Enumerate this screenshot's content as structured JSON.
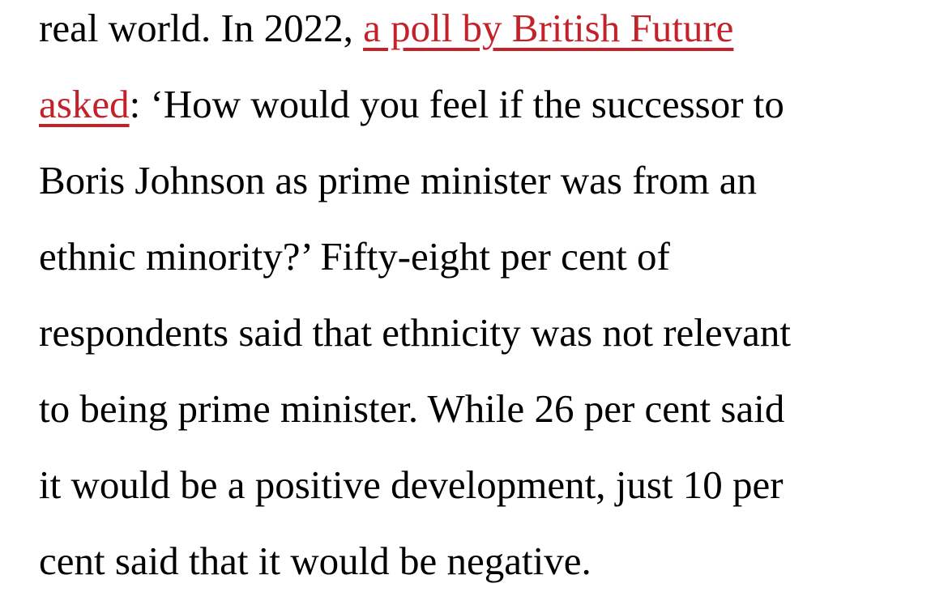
{
  "page": {
    "background_color": "#ffffff",
    "text_color": "#000000",
    "link_color": "#c3222a"
  },
  "paragraph": {
    "full_text": "real world. In 2022, a poll by British Future asked: ‘How would you feel if the successor to Boris Johnson as prime minister was from an ethnic minority?’ Fifty-eight per cent of respondents said that ethnicity was not relevant to being prime minister. While 26 per cent said it would be a positive development, just 10 per cent said that it would be negative.",
    "link_text_full": "a poll by British Future asked",
    "lines": [
      [
        {
          "t": "real world. In 2022, ",
          "k": "text"
        },
        {
          "t": "a poll by British Future",
          "k": "link"
        }
      ],
      [
        {
          "t": "asked",
          "k": "link"
        },
        {
          "t": ": ‘How would you feel if the successor to",
          "k": "text"
        }
      ],
      [
        {
          "t": "Boris Johnson as prime minister was from an",
          "k": "text"
        }
      ],
      [
        {
          "t": "ethnic minority?’ Fifty-eight per cent of",
          "k": "text"
        }
      ],
      [
        {
          "t": "respondents said that ethnicity was not relevant",
          "k": "text"
        }
      ],
      [
        {
          "t": "to being prime minister. While 26 per cent said",
          "k": "text"
        }
      ],
      [
        {
          "t": "it would be a positive development, just 10 per",
          "k": "text"
        }
      ],
      [
        {
          "t": "cent said that it would be negative.",
          "k": "text"
        }
      ]
    ]
  }
}
